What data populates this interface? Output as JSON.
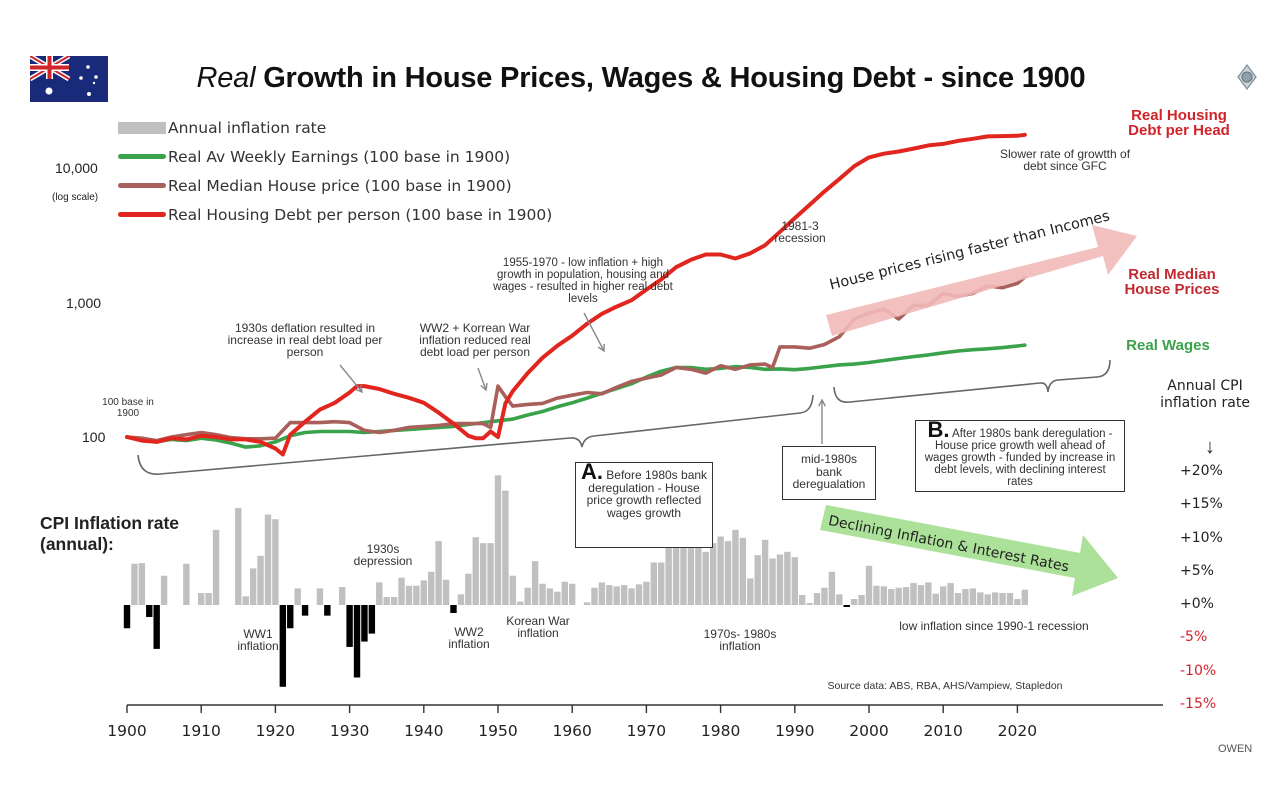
{
  "header": {
    "title_italic": "Real",
    "title_rest": " Growth in House Prices, Wages & Housing Debt - since 1900",
    "flag_icon": "australia-flag-icon",
    "logo_icon": "owen-logo-icon",
    "corner_text": "OWEN"
  },
  "legend": {
    "items": [
      {
        "label": "Annual inflation rate",
        "color": "#bfbfbf",
        "type": "bar"
      },
      {
        "label": "Real  Av Weekly Earnings  (100 base in 1900)",
        "color": "#3aa24a",
        "type": "line"
      },
      {
        "label": "Real  Median House price (100 base in 1900)",
        "color": "#a9605a",
        "type": "line"
      },
      {
        "label": "Real  Housing Debt per person (100 base in 1900)",
        "color": "#e0261e",
        "type": "line"
      }
    ]
  },
  "left_axis": {
    "ticks": [
      "10,000",
      "1,000",
      "100"
    ],
    "scale_note": "(log scale)",
    "base_note": "100 base in 1900"
  },
  "cpi_axis": {
    "title": "Annual CPI inflation rate",
    "arrow": "↓",
    "ticks": [
      "+20%",
      "+15%",
      "+10%",
      "+5%",
      "+0%",
      "-5%",
      "-10%",
      "-15%"
    ],
    "positive_color": "#222222",
    "negative_color": "#d0242b"
  },
  "cpi_section_label": "CPI Inflation rate (annual):",
  "series_labels": {
    "debt": "Real Housing Debt per Head",
    "house": "Real Median House Prices",
    "wages": "Real Wages"
  },
  "annotations": {
    "deflation_1930s": "1930s deflation resulted in increase in real debt load per person",
    "ww2_korea": "WW2 + Korrean War inflation reduced real debt load per person",
    "growth_1955_1970": "1955-1970 - low inflation + high growth in population, housing and wages - resulted in higher real debt levels",
    "recession_1981": "1981-3 recession",
    "gfc": "Slower rate of growtth of debt since GFC",
    "house_arrow": "House prices rising faster than Incomes",
    "inflation_arrow": "Declining Inflation & Interest Rates",
    "box_a_letter": "A.",
    "box_a_text": "Before 1980s bank deregulation - House price  growth reflected wages growth",
    "box_mid": "mid-1980s bank deregualation",
    "box_b_letter": "B.",
    "box_b_text": "After 1980s bank deregulation - House price  growth well ahead of wages growth - funded by increase in debt levels, with declining interest rates",
    "depression": "1930s depression",
    "ww1": "WW1 inflation",
    "ww2": "WW2 inflation",
    "korean": "Korean War inflation",
    "inflation_70s80s": "1970s- 1980s inflation",
    "low_inflation": "low inflation since 1990-1 recession",
    "source": "Source data: ABS, RBA, AHS/Vampiew, Stapledon"
  },
  "chart_data": [
    {
      "type": "line",
      "title": "Real Growth in House Prices, Wages & Housing Debt - since 1900",
      "xlabel": "",
      "ylabel": "(log scale)",
      "yscale": "log",
      "ylim": [
        60,
        14000
      ],
      "xlim": [
        1900,
        2028
      ],
      "x_ticks": [
        1900,
        1910,
        1920,
        1930,
        1940,
        1950,
        1960,
        1970,
        1980,
        1990,
        2000,
        2010,
        2020
      ],
      "y_ticks": [
        100,
        1000,
        10000
      ],
      "legend_position": "top-left",
      "series": [
        {
          "name": "Real Av Weekly Earnings (100 base in 1900)",
          "color": "#3aa24a",
          "x": [
            1900,
            1902,
            1904,
            1906,
            1908,
            1910,
            1912,
            1914,
            1916,
            1918,
            1920,
            1922,
            1924,
            1926,
            1928,
            1930,
            1932,
            1934,
            1936,
            1938,
            1940,
            1942,
            1944,
            1946,
            1948,
            1950,
            1952,
            1954,
            1956,
            1958,
            1960,
            1962,
            1964,
            1966,
            1968,
            1970,
            1972,
            1974,
            1976,
            1978,
            1980,
            1982,
            1984,
            1986,
            1988,
            1990,
            1992,
            1994,
            1996,
            1998,
            2000,
            2002,
            2004,
            2006,
            2008,
            2010,
            2012,
            2014,
            2016,
            2018,
            2020,
            2021
          ],
          "values": [
            100,
            95,
            92,
            96,
            94,
            98,
            95,
            90,
            84,
            86,
            92,
            102,
            108,
            110,
            110,
            110,
            108,
            110,
            112,
            114,
            116,
            118,
            120,
            124,
            128,
            132,
            136,
            146,
            155,
            168,
            180,
            195,
            212,
            230,
            250,
            280,
            310,
            330,
            330,
            320,
            325,
            335,
            330,
            320,
            322,
            318,
            325,
            335,
            345,
            350,
            360,
            372,
            385,
            398,
            410,
            425,
            438,
            448,
            455,
            465,
            478,
            485
          ]
        },
        {
          "name": "Real Median House price (100 base in 1900)",
          "color": "#a9605a",
          "x": [
            1900,
            1902,
            1904,
            1906,
            1908,
            1910,
            1912,
            1914,
            1916,
            1918,
            1920,
            1922,
            1924,
            1926,
            1928,
            1930,
            1932,
            1934,
            1936,
            1938,
            1940,
            1942,
            1944,
            1946,
            1948,
            1949,
            1950,
            1951,
            1952,
            1954,
            1956,
            1958,
            1960,
            1962,
            1964,
            1966,
            1968,
            1970,
            1972,
            1974,
            1976,
            1978,
            1980,
            1982,
            1984,
            1986,
            1987,
            1988,
            1990,
            1992,
            1994,
            1996,
            1998,
            2000,
            2002,
            2004,
            2006,
            2008,
            2010,
            2012,
            2014,
            2016,
            2018,
            2020,
            2021
          ],
          "values": [
            100,
            98,
            94,
            100,
            104,
            108,
            104,
            99,
            97,
            97,
            98,
            128,
            128,
            128,
            130,
            128,
            112,
            108,
            112,
            118,
            120,
            122,
            126,
            126,
            126,
            118,
            240,
            200,
            170,
            175,
            178,
            195,
            205,
            215,
            210,
            235,
            260,
            275,
            290,
            330,
            320,
            300,
            340,
            320,
            345,
            350,
            330,
            470,
            470,
            460,
            490,
            560,
            760,
            840,
            900,
            760,
            960,
            960,
            1180,
            1120,
            1180,
            1340,
            1300,
            1400,
            1560
          ]
        },
        {
          "name": "Real Housing Debt per person (100 base in 1900)",
          "color": "#e0261e",
          "x": [
            1900,
            1902,
            1904,
            1906,
            1908,
            1910,
            1912,
            1914,
            1916,
            1918,
            1920,
            1921,
            1922,
            1924,
            1926,
            1928,
            1930,
            1931,
            1932,
            1934,
            1936,
            1938,
            1940,
            1942,
            1944,
            1946,
            1947,
            1948,
            1949,
            1950,
            1951,
            1952,
            1954,
            1956,
            1958,
            1960,
            1962,
            1964,
            1966,
            1968,
            1970,
            1972,
            1974,
            1976,
            1978,
            1980,
            1982,
            1984,
            1986,
            1988,
            1990,
            1992,
            1994,
            1996,
            1998,
            2000,
            2002,
            2004,
            2006,
            2008,
            2010,
            2012,
            2014,
            2016,
            2018,
            2020,
            2021
          ],
          "values": [
            100,
            94,
            92,
            98,
            96,
            102,
            100,
            96,
            96,
            92,
            82,
            74,
            104,
            130,
            160,
            180,
            215,
            240,
            240,
            228,
            210,
            196,
            180,
            152,
            126,
            102,
            98,
            98,
            110,
            100,
            178,
            220,
            300,
            390,
            480,
            570,
            700,
            830,
            940,
            1050,
            1260,
            1500,
            1850,
            2100,
            2300,
            2300,
            2150,
            2350,
            2700,
            3400,
            4300,
            5400,
            6800,
            8400,
            10500,
            12200,
            13000,
            13500,
            14200,
            15000,
            15400,
            16200,
            16800,
            17500,
            17600,
            17700,
            18000
          ]
        }
      ]
    },
    {
      "type": "bar",
      "title": "CPI Inflation rate (annual)",
      "ylabel": "Annual CPI inflation rate",
      "ylim": [
        -15,
        20
      ],
      "y_ticks": [
        "+20%",
        "+15%",
        "+10%",
        "+5%",
        "+0%",
        "-5%",
        "-10%",
        "-15%"
      ],
      "positive_color": "#c0c0c0",
      "negative_color": "#000000",
      "categories": [
        1900,
        1901,
        1902,
        1903,
        1904,
        1905,
        1906,
        1907,
        1908,
        1909,
        1910,
        1911,
        1912,
        1913,
        1914,
        1915,
        1916,
        1917,
        1918,
        1919,
        1920,
        1921,
        1922,
        1923,
        1924,
        1925,
        1926,
        1927,
        1928,
        1929,
        1930,
        1931,
        1932,
        1933,
        1934,
        1935,
        1936,
        1937,
        1938,
        1939,
        1940,
        1941,
        1942,
        1943,
        1944,
        1945,
        1946,
        1947,
        1948,
        1949,
        1950,
        1951,
        1952,
        1953,
        1954,
        1955,
        1956,
        1957,
        1958,
        1959,
        1960,
        1961,
        1962,
        1963,
        1964,
        1965,
        1966,
        1967,
        1968,
        1969,
        1970,
        1971,
        1972,
        1973,
        1974,
        1975,
        1976,
        1977,
        1978,
        1979,
        1980,
        1981,
        1982,
        1983,
        1984,
        1985,
        1986,
        1987,
        1988,
        1989,
        1990,
        1991,
        1992,
        1993,
        1994,
        1995,
        1996,
        1997,
        1998,
        1999,
        2000,
        2001,
        2002,
        2003,
        2004,
        2005,
        2006,
        2007,
        2008,
        2009,
        2010,
        2011,
        2012,
        2013,
        2014,
        2015,
        2016,
        2017,
        2018,
        2019,
        2020,
        2021
      ],
      "values": [
        -3.5,
        6.2,
        6.3,
        -1.8,
        -6.6,
        4.4,
        0,
        0,
        6.2,
        0,
        1.8,
        1.8,
        11.3,
        0,
        0,
        14.6,
        1.3,
        5.5,
        7.4,
        13.6,
        12.9,
        -12.3,
        -3.5,
        2.5,
        -1.6,
        0,
        2.5,
        -1.6,
        0,
        2.7,
        -6.3,
        -10.9,
        -5.5,
        -4.3,
        3.4,
        1.2,
        1.2,
        4.1,
        2.9,
        2.9,
        3.7,
        5.0,
        9.6,
        3.8,
        -1.2,
        1.6,
        4.7,
        10.2,
        9.3,
        9.3,
        19.5,
        17.2,
        4.4,
        0.5,
        2.6,
        6.6,
        3.2,
        2.5,
        2.0,
        3.5,
        3.2,
        0,
        0.4,
        2.6,
        3.4,
        3.0,
        2.8,
        3.0,
        2.5,
        3.1,
        3.5,
        6.4,
        6.4,
        10.2,
        15.1,
        15.1,
        13.2,
        11.9,
        8.0,
        9.3,
        10.3,
        9.6,
        11.3,
        10.1,
        4.0,
        7.5,
        9.8,
        7.0,
        7.6,
        8.0,
        7.2,
        1.5,
        0.3,
        1.8,
        2.6,
        5.0,
        1.6,
        -0.3,
        0.9,
        1.5,
        5.9,
        2.9,
        2.8,
        2.4,
        2.6,
        2.7,
        3.3,
        3.0,
        3.4,
        1.7,
        2.8,
        3.3,
        1.8,
        2.4,
        2.5,
        1.9,
        1.6,
        1.9,
        1.8,
        1.8,
        0.9,
        2.3
      ]
    }
  ]
}
